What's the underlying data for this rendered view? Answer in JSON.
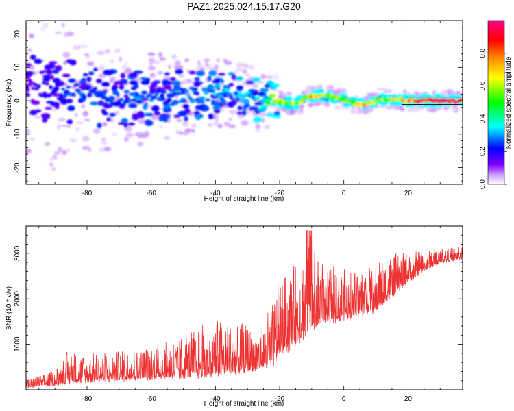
{
  "figure": {
    "title": "PAZ1.2025.024.15.17.G20"
  },
  "chart_data": [
    {
      "type": "heatmap",
      "name": "spectrogram",
      "xlabel": "Height of straight line (km)",
      "ylabel": "Frequency (Hz)",
      "xlim": [
        -99,
        37
      ],
      "ylim": [
        -25,
        24
      ],
      "xticks": [
        -80,
        -60,
        -40,
        -20,
        0,
        20
      ],
      "yticks": [
        -20,
        -10,
        0,
        10,
        20
      ],
      "colorbar": {
        "label": "Normalized spectral amplitude",
        "range": [
          0,
          1
        ],
        "ticks": [
          0.0,
          0.2,
          0.4,
          0.6,
          0.8
        ],
        "colormap": [
          "#ffffff",
          "#cc99ff",
          "#7f00ff",
          "#0000ff",
          "#00ffff",
          "#00ff00",
          "#ffff00",
          "#ff8000",
          "#ff0000",
          "#ff0088"
        ]
      },
      "ridge": [
        {
          "x": -97,
          "f": 4,
          "a": 0.15
        },
        {
          "x": -90,
          "f": 3,
          "a": 0.2
        },
        {
          "x": -86,
          "f": 3,
          "a": 0.28
        },
        {
          "x": -80,
          "f": 2,
          "a": 0.25
        },
        {
          "x": -75,
          "f": 1,
          "a": 0.22
        },
        {
          "x": -70,
          "f": 0,
          "a": 0.25
        },
        {
          "x": -64,
          "f": 1,
          "a": 0.27
        },
        {
          "x": -58,
          "f": 0.5,
          "a": 0.25
        },
        {
          "x": -52,
          "f": 1.5,
          "a": 0.26
        },
        {
          "x": -46,
          "f": 2,
          "a": 0.28
        },
        {
          "x": -40,
          "f": 2,
          "a": 0.3
        },
        {
          "x": -34,
          "f": 2,
          "a": 0.3
        },
        {
          "x": -29,
          "f": 1,
          "a": 0.32
        },
        {
          "x": -25,
          "f": -1,
          "a": 0.35
        },
        {
          "x": -22,
          "f": 0,
          "a": 0.55
        },
        {
          "x": -18,
          "f": -0.5,
          "a": 0.6
        },
        {
          "x": -14,
          "f": -1,
          "a": 0.55
        },
        {
          "x": -12,
          "f": 1,
          "a": 0.62
        },
        {
          "x": -9,
          "f": 1.5,
          "a": 0.75
        },
        {
          "x": -5,
          "f": 1.5,
          "a": 0.6
        },
        {
          "x": 0,
          "f": 0.5,
          "a": 0.55
        },
        {
          "x": 4,
          "f": -1,
          "a": 0.6
        },
        {
          "x": 7,
          "f": -1,
          "a": 0.72
        },
        {
          "x": 11,
          "f": 0.5,
          "a": 0.55
        },
        {
          "x": 16,
          "f": 0.5,
          "a": 0.65
        },
        {
          "x": 20,
          "f": 0,
          "a": 0.8
        },
        {
          "x": 26,
          "f": 0,
          "a": 0.9
        },
        {
          "x": 32,
          "f": 0,
          "a": 0.95
        },
        {
          "x": 37,
          "f": 0,
          "a": 1.0
        }
      ]
    },
    {
      "type": "line",
      "name": "snr",
      "xlabel": "Height of straight line (km)",
      "ylabel": "SNR (10 * v/v)",
      "xlim": [
        -99,
        37
      ],
      "ylim": [
        0,
        3600
      ],
      "xticks": [
        -80,
        -60,
        -40,
        -20,
        0,
        20
      ],
      "yticks": [
        1000,
        2000,
        3000
      ],
      "color": "#ee3333",
      "envelope": [
        {
          "x": -99,
          "base": 60,
          "amp": 150
        },
        {
          "x": -90,
          "base": 120,
          "amp": 250
        },
        {
          "x": -86,
          "base": 200,
          "amp": 550
        },
        {
          "x": -80,
          "base": 220,
          "amp": 450
        },
        {
          "x": -70,
          "base": 250,
          "amp": 500
        },
        {
          "x": -60,
          "base": 280,
          "amp": 550
        },
        {
          "x": -50,
          "base": 320,
          "amp": 700
        },
        {
          "x": -45,
          "base": 350,
          "amp": 850
        },
        {
          "x": -42,
          "base": 380,
          "amp": 950
        },
        {
          "x": -38,
          "base": 420,
          "amp": 900
        },
        {
          "x": -32,
          "base": 460,
          "amp": 800
        },
        {
          "x": -26,
          "base": 520,
          "amp": 700
        },
        {
          "x": -22,
          "base": 600,
          "amp": 1100
        },
        {
          "x": -20,
          "base": 900,
          "amp": 1300
        },
        {
          "x": -17,
          "base": 1000,
          "amp": 1300
        },
        {
          "x": -14,
          "base": 1200,
          "amp": 1400
        },
        {
          "x": -11,
          "base": 1400,
          "amp": 1800
        },
        {
          "x": -9,
          "base": 1500,
          "amp": 1200
        },
        {
          "x": -5,
          "base": 1600,
          "amp": 900
        },
        {
          "x": 0,
          "base": 1600,
          "amp": 900
        },
        {
          "x": 5,
          "base": 1700,
          "amp": 800
        },
        {
          "x": 10,
          "base": 1800,
          "amp": 800
        },
        {
          "x": 15,
          "base": 2100,
          "amp": 700
        },
        {
          "x": 20,
          "base": 2400,
          "amp": 500
        },
        {
          "x": 25,
          "base": 2650,
          "amp": 350
        },
        {
          "x": 30,
          "base": 2800,
          "amp": 250
        },
        {
          "x": 37,
          "base": 2900,
          "amp": 200
        }
      ]
    }
  ]
}
